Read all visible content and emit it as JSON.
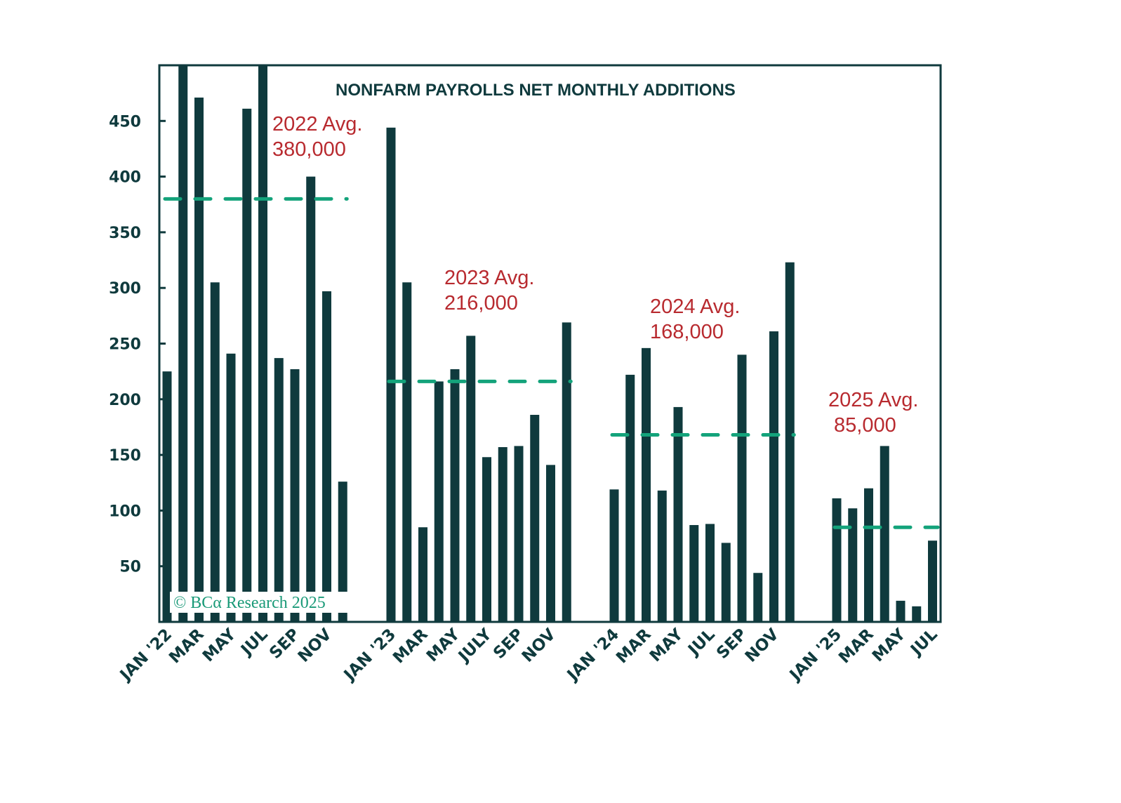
{
  "chart_data": {
    "type": "bar",
    "title": "NONFARM PAYROLLS NET MONTHLY ADDITIONS",
    "xlabel": "",
    "ylabel": "",
    "units": "thousands",
    "ylim": [
      0,
      500
    ],
    "yticks": [
      50,
      100,
      150,
      200,
      250,
      300,
      350,
      400,
      450
    ],
    "grid": false,
    "legend": "none",
    "colors": {
      "bar": "#0f3a3d",
      "avg_line": "#14a37b",
      "avg_label": "#b82a2f",
      "axis": "#0f3a3d",
      "watermark": "#1a9a78"
    },
    "groups": [
      {
        "year": "2022",
        "months": [
          "Jan",
          "Feb",
          "Mar",
          "Apr",
          "May",
          "Jun",
          "Jul",
          "Aug",
          "Sep",
          "Oct",
          "Nov",
          "Dec"
        ],
        "values": [
          225,
          500,
          471,
          305,
          241,
          461,
          500,
          237,
          227,
          400,
          297,
          126
        ],
        "clipped_at_top": [
          "Feb",
          "Jul"
        ],
        "average": 380,
        "avg_label_line1": "2022 Avg.",
        "avg_label_line2": "380,000"
      },
      {
        "year": "2023",
        "months": [
          "Jan",
          "Feb",
          "Mar",
          "Apr",
          "May",
          "Jun",
          "Jul",
          "Aug",
          "Sep",
          "Oct",
          "Nov",
          "Dec"
        ],
        "values": [
          444,
          305,
          85,
          216,
          227,
          257,
          148,
          157,
          158,
          186,
          141,
          269
        ],
        "average": 216,
        "avg_label_line1": "2023 Avg.",
        "avg_label_line2": "216,000"
      },
      {
        "year": "2024",
        "months": [
          "Jan",
          "Feb",
          "Mar",
          "Apr",
          "May",
          "Jun",
          "Jul",
          "Aug",
          "Sep",
          "Oct",
          "Nov",
          "Dec"
        ],
        "values": [
          119,
          222,
          246,
          118,
          193,
          87,
          88,
          71,
          240,
          44,
          261,
          323
        ],
        "average": 168,
        "avg_label_line1": "2024 Avg.",
        "avg_label_line2": "168,000"
      },
      {
        "year": "2025",
        "months": [
          "Jan",
          "Feb",
          "Mar",
          "Apr",
          "May",
          "Jun",
          "Jul"
        ],
        "values": [
          111,
          102,
          120,
          158,
          19,
          14,
          73
        ],
        "average": 85,
        "avg_label_line1": "2025 Avg.",
        "avg_label_line2": "85,000"
      }
    ],
    "xtick_labels": [
      [
        "JAN '22",
        "MAR",
        "MAY",
        "JUL",
        "SEP",
        "NOV"
      ],
      [
        "JAN '23",
        "MAR",
        "MAY",
        "JULY",
        "SEP",
        "NOV"
      ],
      [
        "JAN '24",
        "MAR",
        "MAY",
        "JUL",
        "SEP",
        "NOV"
      ],
      [
        "JAN '25",
        "MAR",
        "MAY",
        "JUL"
      ]
    ],
    "watermark": "© BCα Research 2025"
  }
}
